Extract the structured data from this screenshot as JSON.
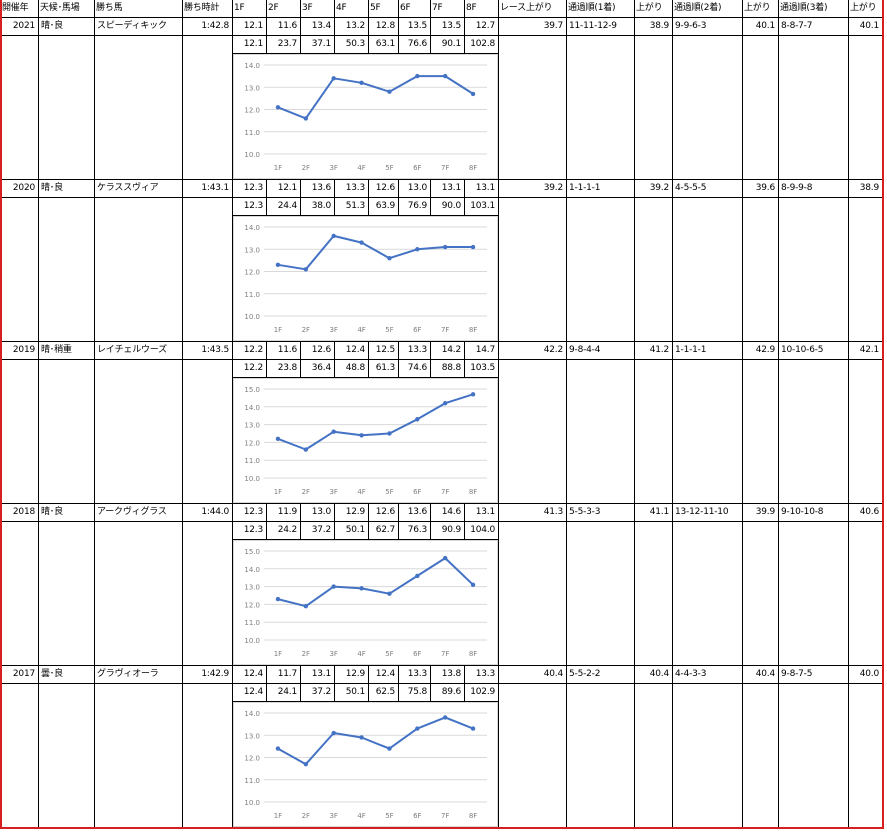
{
  "header": {
    "year": "開催年",
    "weather": "天候･馬場",
    "winner": "勝ち馬",
    "time": "勝ち時計",
    "f1": "1F",
    "f2": "2F",
    "f3": "3F",
    "f4": "4F",
    "f5": "5F",
    "f6": "6F",
    "f7": "7F",
    "f8": "8F",
    "race_last": "レース上がり",
    "pass1": "通過順(1着)",
    "last1": "上がり",
    "pass2": "通過順(2着)",
    "last2": "上がり",
    "pass3": "通過順(3着)",
    "last3": "上がり"
  },
  "races": [
    {
      "year": "2021",
      "weather": "晴･良",
      "winner": "スピーディキック",
      "time": "1:42.8",
      "laps": [
        "12.1",
        "11.6",
        "13.4",
        "13.2",
        "12.8",
        "13.5",
        "13.5",
        "12.7"
      ],
      "cum": [
        "12.1",
        "23.7",
        "37.1",
        "50.3",
        "63.1",
        "76.6",
        "90.1",
        "102.8"
      ],
      "race_last": "39.7",
      "pass1": "11-11-12-9",
      "last1": "38.9",
      "pass2": "9-9-6-3",
      "last2": "40.1",
      "pass3": "8-8-7-7",
      "last3": "40.1"
    },
    {
      "year": "2020",
      "weather": "晴･良",
      "winner": "ケラススヴィア",
      "time": "1:43.1",
      "laps": [
        "12.3",
        "12.1",
        "13.6",
        "13.3",
        "12.6",
        "13.0",
        "13.1",
        "13.1"
      ],
      "cum": [
        "12.3",
        "24.4",
        "38.0",
        "51.3",
        "63.9",
        "76.9",
        "90.0",
        "103.1"
      ],
      "race_last": "39.2",
      "pass1": "1-1-1-1",
      "last1": "39.2",
      "pass2": "4-5-5-5",
      "last2": "39.6",
      "pass3": "8-9-9-8",
      "last3": "38.9"
    },
    {
      "year": "2019",
      "weather": "晴･稍重",
      "winner": "レイチェルウーズ",
      "time": "1:43.5",
      "laps": [
        "12.2",
        "11.6",
        "12.6",
        "12.4",
        "12.5",
        "13.3",
        "14.2",
        "14.7"
      ],
      "cum": [
        "12.2",
        "23.8",
        "36.4",
        "48.8",
        "61.3",
        "74.6",
        "88.8",
        "103.5"
      ],
      "race_last": "42.2",
      "pass1": "9-8-4-4",
      "last1": "41.2",
      "pass2": "1-1-1-1",
      "last2": "42.9",
      "pass3": "10-10-6-5",
      "last3": "42.1"
    },
    {
      "year": "2018",
      "weather": "晴･良",
      "winner": "アークヴィグラス",
      "time": "1:44.0",
      "laps": [
        "12.3",
        "11.9",
        "13.0",
        "12.9",
        "12.6",
        "13.6",
        "14.6",
        "13.1"
      ],
      "cum": [
        "12.3",
        "24.2",
        "37.2",
        "50.1",
        "62.7",
        "76.3",
        "90.9",
        "104.0"
      ],
      "race_last": "41.3",
      "pass1": "5-5-3-3",
      "last1": "41.1",
      "pass2": "13-12-11-10",
      "last2": "39.9",
      "pass3": "9-10-10-8",
      "last3": "40.6"
    },
    {
      "year": "2017",
      "weather": "曇･良",
      "winner": "グラヴィオーラ",
      "time": "1:42.9",
      "laps": [
        "12.4",
        "11.7",
        "13.1",
        "12.9",
        "12.4",
        "13.3",
        "13.8",
        "13.3"
      ],
      "cum": [
        "12.4",
        "24.1",
        "37.2",
        "50.1",
        "62.5",
        "75.8",
        "89.6",
        "102.9"
      ],
      "race_last": "40.4",
      "pass1": "5-5-2-2",
      "last1": "40.4",
      "pass2": "4-4-3-3",
      "last2": "40.4",
      "pass3": "9-8-7-5",
      "last3": "40.0"
    }
  ],
  "style": {
    "line_color": "#4472c4",
    "grid_color": "#d9d9d9",
    "axis_text_color": "#7f7f7f",
    "border_accent": "#d42020"
  },
  "chart_data": [
    {
      "type": "line",
      "categories": [
        "1F",
        "2F",
        "3F",
        "4F",
        "5F",
        "6F",
        "7F",
        "8F"
      ],
      "series": [
        {
          "values": [
            12.1,
            11.6,
            13.4,
            13.2,
            12.8,
            13.5,
            13.5,
            12.7
          ]
        }
      ],
      "yticks": [
        "10.0",
        "11.0",
        "12.0",
        "13.0",
        "14.0"
      ],
      "ylim": [
        10,
        14
      ],
      "grid": true
    },
    {
      "type": "line",
      "categories": [
        "1F",
        "2F",
        "3F",
        "4F",
        "5F",
        "6F",
        "7F",
        "8F"
      ],
      "series": [
        {
          "values": [
            12.3,
            12.1,
            13.6,
            13.3,
            12.6,
            13.0,
            13.1,
            13.1
          ]
        }
      ],
      "yticks": [
        "10.0",
        "11.0",
        "12.0",
        "13.0",
        "14.0"
      ],
      "ylim": [
        10,
        14
      ],
      "grid": true
    },
    {
      "type": "line",
      "categories": [
        "1F",
        "2F",
        "3F",
        "4F",
        "5F",
        "6F",
        "7F",
        "8F"
      ],
      "series": [
        {
          "values": [
            12.2,
            11.6,
            12.6,
            12.4,
            12.5,
            13.3,
            14.2,
            14.7
          ]
        }
      ],
      "yticks": [
        "10.0",
        "11.0",
        "12.0",
        "13.0",
        "14.0",
        "15.0"
      ],
      "ylim": [
        10,
        15
      ],
      "grid": true
    },
    {
      "type": "line",
      "categories": [
        "1F",
        "2F",
        "3F",
        "4F",
        "5F",
        "6F",
        "7F",
        "8F"
      ],
      "series": [
        {
          "values": [
            12.3,
            11.9,
            13.0,
            12.9,
            12.6,
            13.6,
            14.6,
            13.1
          ]
        }
      ],
      "yticks": [
        "10.0",
        "11.0",
        "12.0",
        "13.0",
        "14.0",
        "15.0"
      ],
      "ylim": [
        10,
        15
      ],
      "grid": true
    },
    {
      "type": "line",
      "categories": [
        "1F",
        "2F",
        "3F",
        "4F",
        "5F",
        "6F",
        "7F",
        "8F"
      ],
      "series": [
        {
          "values": [
            12.4,
            11.7,
            13.1,
            12.9,
            12.4,
            13.3,
            13.8,
            13.3
          ]
        }
      ],
      "yticks": [
        "10.0",
        "11.0",
        "12.0",
        "13.0",
        "14.0"
      ],
      "ylim": [
        10,
        14
      ],
      "grid": true
    }
  ]
}
